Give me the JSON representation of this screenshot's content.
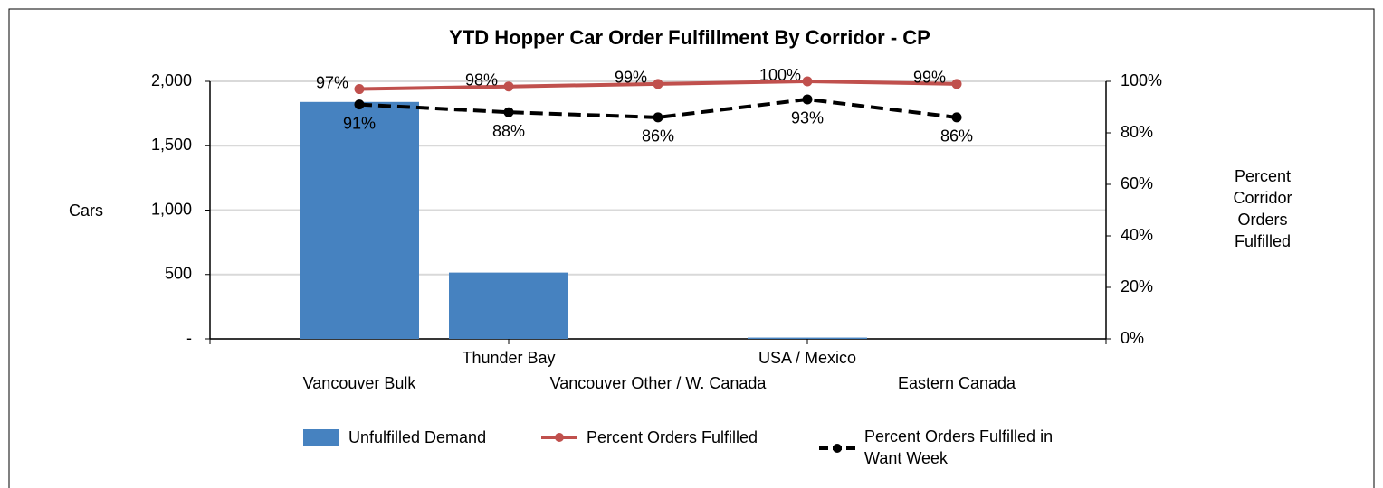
{
  "chart_data": {
    "type": "bar_line",
    "title": "YTD Hopper Car Order Fulfillment By Corridor - CP",
    "y_label": "Cars",
    "y2_label": "Percent Corridor Orders Fulfilled",
    "categories": [
      "Vancouver Bulk",
      "Thunder Bay",
      "Vancouver Other / W. Canada",
      "USA / Mexico",
      "Eastern Canada"
    ],
    "series": [
      {
        "name": "Unfulfilled Demand",
        "type": "bar",
        "color": "#4682c0",
        "values": [
          1840,
          515,
          0,
          10,
          0
        ]
      },
      {
        "name": "Percent Orders Fulfilled",
        "type": "line",
        "axis": "y2",
        "color": "#c0504d",
        "line_style": "solid",
        "values": [
          97,
          98,
          99,
          100,
          99
        ],
        "value_labels": [
          "97%",
          "98%",
          "99%",
          "100%",
          "99%"
        ]
      },
      {
        "name": "Percent Orders Fulfilled in Want Week",
        "type": "line",
        "axis": "y2",
        "color": "#000000",
        "line_style": "dashed",
        "values": [
          91,
          88,
          86,
          93,
          86
        ],
        "value_labels": [
          "91%",
          "88%",
          "86%",
          "93%",
          "86%"
        ]
      }
    ],
    "ylim": [
      0,
      2000
    ],
    "yticks": [
      {
        "value": 0,
        "label": "-"
      },
      {
        "value": 500,
        "label": "500"
      },
      {
        "value": 1000,
        "label": "1,000"
      },
      {
        "value": 1500,
        "label": "1,500"
      },
      {
        "value": 2000,
        "label": "2,000"
      }
    ],
    "y2lim": [
      0,
      100
    ],
    "y2ticks": [
      {
        "value": 0,
        "label": "0%"
      },
      {
        "value": 20,
        "label": "20%"
      },
      {
        "value": 40,
        "label": "40%"
      },
      {
        "value": 60,
        "label": "60%"
      },
      {
        "value": 80,
        "label": "80%"
      },
      {
        "value": 100,
        "label": "100%"
      }
    ],
    "grid": true,
    "legend": "bottom"
  }
}
